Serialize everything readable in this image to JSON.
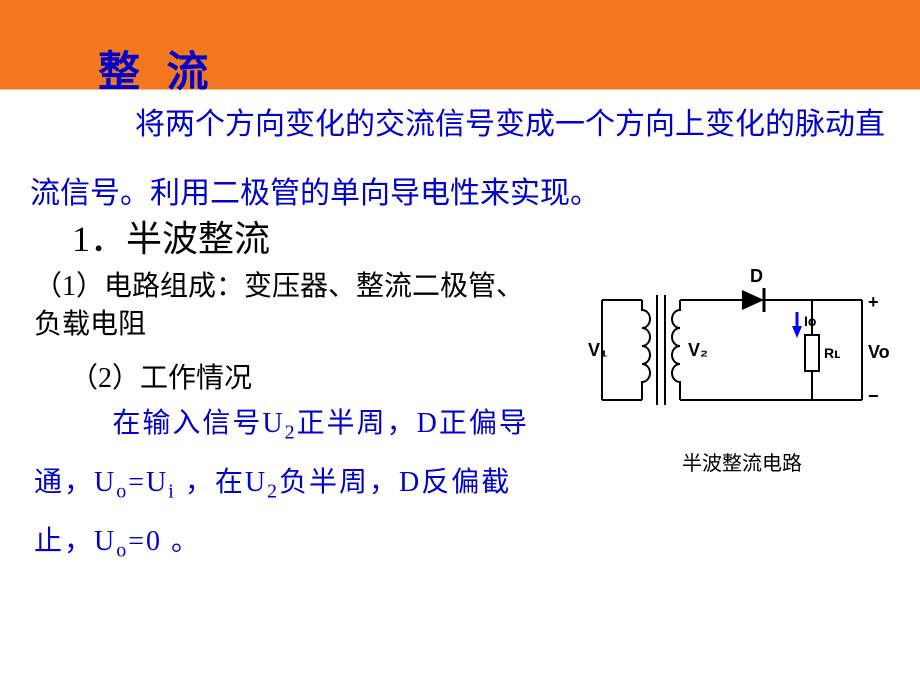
{
  "title": "整 流",
  "intro": "将两个方向变化的交流信号变成一个方向上变化的脉动直流信号。利用二极管的单向导电性来实现。",
  "section1": "1．半波整流",
  "point1": "（1）电路组成：变压器、整流二极管、负载电阻",
  "point2_label": "（2）工作情况",
  "point2_body": "在输入信号U<sub>2</sub>正半周，D正偏导通，U<sub>o</sub>=U<sub>i</sub> ，在U<sub>2</sub>负半周，D反偏截止，U<sub>o</sub>=0 。",
  "diagram": {
    "caption": "半波整流电路",
    "labels": {
      "V1": "V₁",
      "V2": "V₂",
      "D": "D",
      "Io": "Io",
      "RL": "Rʟ",
      "Vo": "Vo",
      "plus": "+",
      "minus": "−"
    },
    "colors": {
      "wire": "#000000",
      "arrow": "#0000ff"
    }
  },
  "style": {
    "bg_top": "#f47820",
    "bg_bottom": "#ffffff",
    "text_highlight": "#0000c8",
    "text_default": "#000000"
  }
}
